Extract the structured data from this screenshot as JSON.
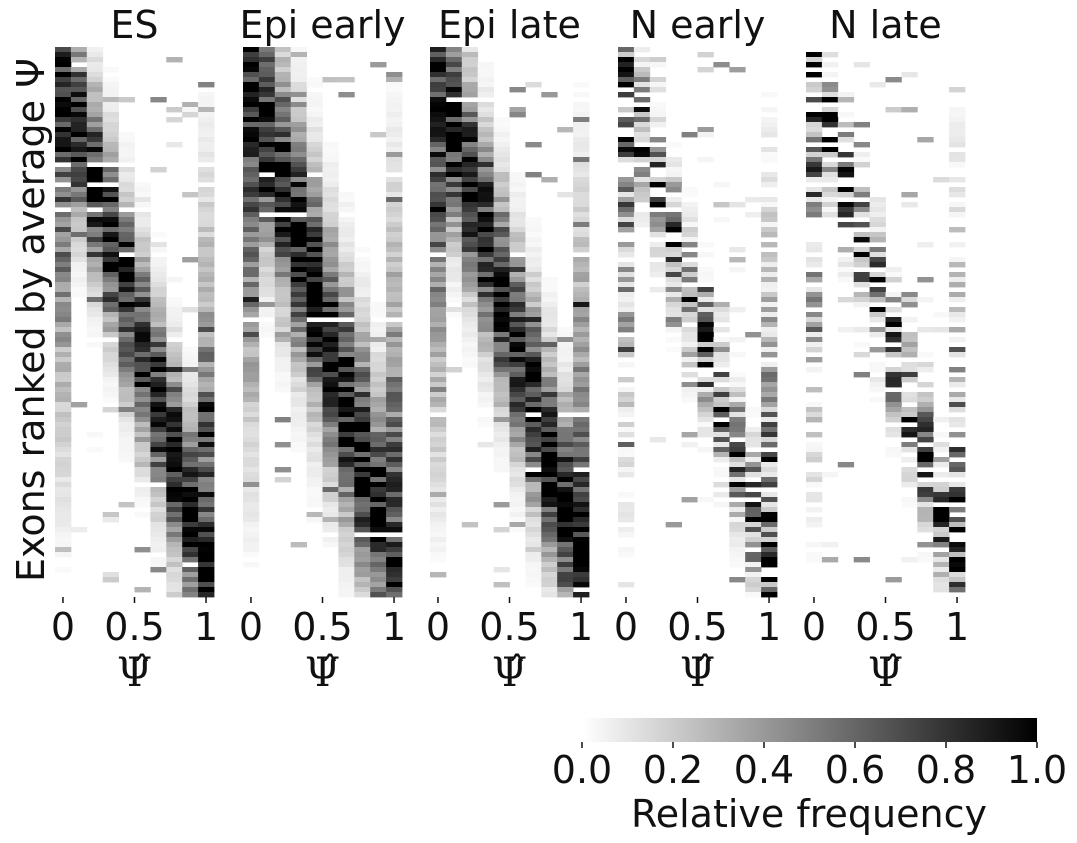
{
  "chart_data": {
    "type": "heatmap",
    "ylabel": "Exons ranked by average Ψ",
    "colormap": {
      "low": "#ffffff",
      "high": "#000000"
    },
    "colorbar": {
      "label": "Relative frequency",
      "range": [
        0.0,
        1.0
      ],
      "ticks": [
        "0.0",
        "0.2",
        "0.4",
        "0.6",
        "0.8",
        "1.0"
      ]
    },
    "panels": [
      {
        "title": "ES",
        "xlabel": "Ψ̂",
        "xticks": [
          "0",
          "0.5",
          "1"
        ],
        "xlim": [
          0,
          1
        ],
        "n_bins": 10
      },
      {
        "title": "Epi early",
        "xlabel": "Ψ̂",
        "xticks": [
          "0",
          "0.5",
          "1"
        ],
        "xlim": [
          0,
          1
        ],
        "n_bins": 10
      },
      {
        "title": "Epi late",
        "xlabel": "Ψ̂",
        "xticks": [
          "0",
          "0.5",
          "1"
        ],
        "xlim": [
          0,
          1
        ],
        "n_bins": 10
      },
      {
        "title": "N early",
        "xlabel": "Ψ̂",
        "xticks": [
          "0",
          "0.5",
          "1"
        ],
        "xlim": [
          0,
          1
        ],
        "n_bins": 10
      },
      {
        "title": "N late",
        "xlabel": "Ψ̂",
        "xticks": [
          "0",
          "0.5",
          "1"
        ],
        "xlim": [
          0,
          1
        ],
        "n_bins": 10
      }
    ]
  }
}
